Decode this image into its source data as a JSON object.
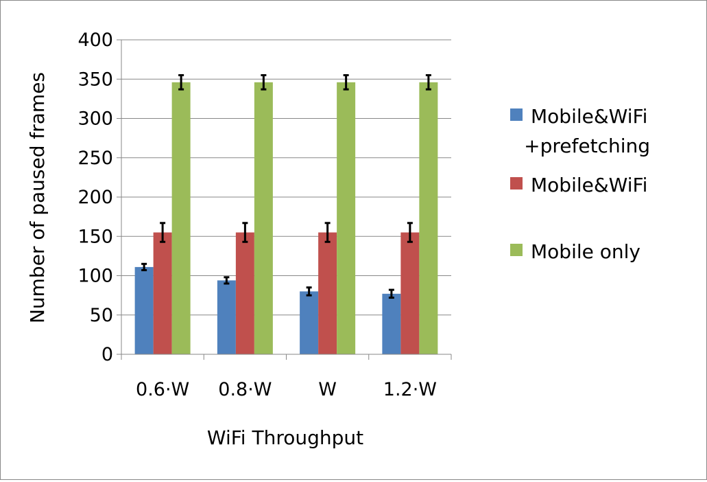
{
  "chart_data": {
    "type": "bar",
    "title": "",
    "xlabel": "WiFi Throughput",
    "ylabel": "Number of paused frames",
    "categories": [
      "0.6·W",
      "0.8·W",
      "W",
      "1.2·W"
    ],
    "ylim": [
      0,
      400
    ],
    "yticks": [
      0,
      50,
      100,
      150,
      200,
      250,
      300,
      350,
      400
    ],
    "grid": true,
    "legend_position": "right",
    "error_bars": true,
    "series": [
      {
        "name": "Mobile&WiFi +prefetching",
        "legend_lines": [
          "Mobile&WiFi",
          "+prefetching"
        ],
        "color": "#4F81BD",
        "values": [
          111,
          94,
          80,
          77
        ],
        "errors": [
          4,
          4,
          5,
          5
        ]
      },
      {
        "name": "Mobile&WiFi",
        "legend_lines": [
          "Mobile&WiFi"
        ],
        "color": "#C0504D",
        "values": [
          155,
          155,
          155,
          155
        ],
        "errors": [
          12,
          12,
          12,
          12
        ]
      },
      {
        "name": "Mobile only",
        "legend_lines": [
          "Mobile only"
        ],
        "color": "#9BBB59",
        "values": [
          346,
          346,
          346,
          346
        ],
        "errors": [
          9,
          9,
          9,
          9
        ]
      }
    ]
  }
}
